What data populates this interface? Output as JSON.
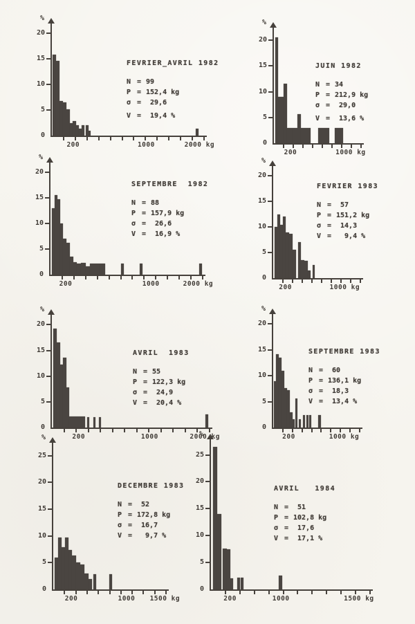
{
  "page": {
    "eq": "=",
    "ink_color": "#46413c",
    "paper_color": "#f6f4ee",
    "bar_color": "#4a4541"
  },
  "chart_data": [
    {
      "type": "bar",
      "title": "FEVRIER_AVRIL 1982",
      "ylabel": "%",
      "xlabel": "kg",
      "stats": [
        {
          "label": "N",
          "value": "99"
        },
        {
          "label": "P",
          "value": "152,4 kg"
        },
        {
          "label": "σ",
          "value": " 29,6"
        },
        {
          "label": "V",
          "value": " 19,4 %"
        }
      ],
      "y_ticks": [
        0,
        5,
        10,
        15,
        20
      ],
      "ylim": [
        0,
        21
      ],
      "x_ticks": [
        {
          "label": "200",
          "f": 0.14
        },
        {
          "label": "1000",
          "f": 0.62
        },
        {
          "label": "2000 kg",
          "f": 0.97
        }
      ],
      "x_minor_ticks": 13,
      "grid": false,
      "legend": "none",
      "bars": [
        [
          1,
          5,
          15.8
        ],
        [
          6,
          5,
          14.6
        ],
        [
          11,
          5,
          6.8
        ],
        [
          16,
          5,
          6.5
        ],
        [
          21,
          5,
          5.1
        ],
        [
          26,
          4,
          2.5
        ],
        [
          30,
          5,
          2.9
        ],
        [
          35,
          4,
          2.1
        ],
        [
          39,
          4,
          1.4
        ],
        [
          43,
          4,
          2.1
        ],
        [
          49,
          4,
          2.0
        ],
        [
          53,
          3,
          1.0
        ],
        [
          208,
          4,
          1.4
        ]
      ]
    },
    {
      "type": "bar",
      "title": "JUIN 1982",
      "ylabel": "%",
      "xlabel": "kg",
      "stats": [
        {
          "label": "N",
          "value": "34"
        },
        {
          "label": "P",
          "value": "212,9 kg"
        },
        {
          "label": "σ",
          "value": " 29,0"
        },
        {
          "label": "V",
          "value": " 13,6 %"
        }
      ],
      "y_ticks": [
        0,
        5,
        10,
        15,
        20
      ],
      "ylim": [
        0,
        21.5
      ],
      "x_ticks": [
        {
          "label": "200",
          "f": 0.19
        },
        {
          "label": "1000 kg",
          "f": 0.88
        }
      ],
      "x_minor_ticks": 9,
      "grid": false,
      "legend": "none",
      "bars": [
        [
          2,
          4,
          20.6
        ],
        [
          6,
          8,
          9.0
        ],
        [
          14,
          5,
          11.5
        ],
        [
          19,
          8,
          3.0
        ],
        [
          27,
          7,
          3.0
        ],
        [
          34,
          5,
          5.6
        ],
        [
          39,
          8,
          3.0
        ],
        [
          47,
          6,
          3.0
        ],
        [
          64,
          16,
          3.0
        ],
        [
          88,
          12,
          3.0
        ]
      ]
    },
    {
      "type": "bar",
      "title": "SEPTEMBRE  1982",
      "ylabel": "%",
      "xlabel": "kg",
      "stats": [
        {
          "label": "N",
          "value": "88"
        },
        {
          "label": "P",
          "value": "157,9 kg"
        },
        {
          "label": "σ",
          "value": " 26,6"
        },
        {
          "label": "V",
          "value": " 16,9 %"
        }
      ],
      "y_ticks": [
        0,
        5,
        10,
        15,
        20
      ],
      "ylim": [
        0,
        21
      ],
      "x_ticks": [
        {
          "label": "200",
          "f": 0.1
        },
        {
          "label": "1000",
          "f": 0.66
        },
        {
          "label": "2000 kg",
          "f": 0.97
        }
      ],
      "x_minor_ticks": 13,
      "grid": false,
      "legend": "none",
      "bars": [
        [
          2,
          4,
          13.0
        ],
        [
          6,
          4,
          15.6
        ],
        [
          10,
          4,
          14.8
        ],
        [
          14,
          4,
          10.0
        ],
        [
          18,
          5,
          7.0
        ],
        [
          23,
          5,
          6.3
        ],
        [
          28,
          5,
          3.5
        ],
        [
          33,
          5,
          2.5
        ],
        [
          38,
          6,
          2.2
        ],
        [
          44,
          7,
          2.3
        ],
        [
          51,
          6,
          1.6
        ],
        [
          57,
          14,
          2.2
        ],
        [
          71,
          8,
          2.2
        ],
        [
          102,
          4,
          2.2
        ],
        [
          129,
          4,
          2.2
        ],
        [
          215,
          4,
          2.2
        ]
      ]
    },
    {
      "type": "bar",
      "title": "FEVRIER 1983",
      "ylabel": "%",
      "xlabel": "kg",
      "stats": [
        {
          "label": "N",
          "value": " 57"
        },
        {
          "label": "P",
          "value": "151,2 kg"
        },
        {
          "label": "σ",
          "value": " 14,3"
        },
        {
          "label": "V",
          "value": "  9,4 %"
        }
      ],
      "y_ticks": [
        0,
        5,
        10,
        15,
        20
      ],
      "ylim": [
        0,
        21
      ],
      "x_ticks": [
        {
          "label": "200",
          "f": 0.14
        },
        {
          "label": "1000 kg",
          "f": 0.82
        }
      ],
      "x_minor_ticks": 9,
      "grid": false,
      "legend": "none",
      "bars": [
        [
          2,
          4,
          10.0
        ],
        [
          6,
          4,
          12.4
        ],
        [
          10,
          4,
          10.5
        ],
        [
          14,
          4,
          12.0
        ],
        [
          18,
          5,
          9.0
        ],
        [
          23,
          5,
          8.7
        ],
        [
          28,
          5,
          5.5
        ],
        [
          36,
          4,
          7.0
        ],
        [
          40,
          5,
          3.5
        ],
        [
          45,
          5,
          3.4
        ],
        [
          50,
          4,
          1.5
        ],
        [
          57,
          3,
          2.6
        ]
      ]
    },
    {
      "type": "bar",
      "title": "AVRIL  1983",
      "ylabel": "%",
      "xlabel": "kg",
      "stats": [
        {
          "label": "N",
          "value": "55"
        },
        {
          "label": "P",
          "value": "122,3 kg"
        },
        {
          "label": "σ",
          "value": " 24,9"
        },
        {
          "label": "V",
          "value": " 20,4 %"
        }
      ],
      "y_ticks": [
        0,
        5,
        10,
        15,
        20
      ],
      "ylim": [
        0,
        21
      ],
      "x_ticks": [
        {
          "label": "200",
          "f": 0.17
        },
        {
          "label": "1000",
          "f": 0.62
        },
        {
          "label": "2000 kg",
          "f": 0.97
        }
      ],
      "x_minor_ticks": 13,
      "grid": false,
      "legend": "none",
      "bars": [
        [
          2,
          5,
          19.2
        ],
        [
          7,
          5,
          16.6
        ],
        [
          12,
          4,
          12.2
        ],
        [
          16,
          5,
          13.6
        ],
        [
          21,
          4,
          7.8
        ],
        [
          25,
          23,
          2.2
        ],
        [
          51,
          3,
          2.0
        ],
        [
          60,
          3,
          2.0
        ],
        [
          68,
          3,
          2.0
        ],
        [
          222,
          4,
          2.5
        ]
      ]
    },
    {
      "type": "bar",
      "title": "SEPTEMBRE 1983",
      "ylabel": "%",
      "xlabel": "kg",
      "stats": [
        {
          "label": "N",
          "value": " 60"
        },
        {
          "label": "P",
          "value": "136,1 kg"
        },
        {
          "label": "σ",
          "value": " 18,3"
        },
        {
          "label": "V",
          "value": " 13,4 %"
        }
      ],
      "y_ticks": [
        0,
        5,
        10,
        15,
        20
      ],
      "ylim": [
        0,
        21
      ],
      "x_ticks": [
        {
          "label": "200",
          "f": 0.18
        },
        {
          "label": "1000 kg",
          "f": 0.82
        }
      ],
      "x_minor_ticks": 9,
      "grid": false,
      "legend": "none",
      "bars": [
        [
          1,
          3,
          9.0
        ],
        [
          4,
          4,
          14.2
        ],
        [
          8,
          4,
          13.5
        ],
        [
          12,
          4,
          11.0
        ],
        [
          16,
          4,
          7.6
        ],
        [
          20,
          4,
          7.2
        ],
        [
          24,
          4,
          3.0
        ],
        [
          28,
          3,
          1.6
        ],
        [
          32,
          3,
          5.6
        ],
        [
          37,
          3,
          1.6
        ],
        [
          43,
          3,
          2.4
        ],
        [
          48,
          3,
          2.4
        ],
        [
          52,
          3,
          2.4
        ],
        [
          65,
          4,
          2.4
        ]
      ]
    },
    {
      "type": "bar",
      "title": "DECEMBRE 1983",
      "ylabel": "%",
      "xlabel": "kg",
      "stats": [
        {
          "label": "N",
          "value": " 52"
        },
        {
          "label": "P",
          "value": "172,8 kg"
        },
        {
          "label": "σ",
          "value": " 16,7"
        },
        {
          "label": "V",
          "value": "  9,7 %"
        }
      ],
      "y_ticks": [
        0,
        5,
        10,
        15,
        20,
        25
      ],
      "ylim": [
        0,
        26.5
      ],
      "x_ticks": [
        {
          "label": "200",
          "f": 0.16
        },
        {
          "label": "1000",
          "f": 0.65
        },
        {
          "label": "1500 kg",
          "f": 0.99
        }
      ],
      "x_minor_ticks": 10,
      "grid": false,
      "legend": "none",
      "bars": [
        [
          2,
          5,
          6.0
        ],
        [
          7,
          5,
          9.7
        ],
        [
          12,
          5,
          7.9
        ],
        [
          17,
          5,
          9.7
        ],
        [
          22,
          5,
          7.4
        ],
        [
          27,
          6,
          6.3
        ],
        [
          33,
          6,
          5.0
        ],
        [
          39,
          6,
          4.6
        ],
        [
          45,
          6,
          3.0
        ],
        [
          51,
          5,
          2.0
        ],
        [
          58,
          4,
          2.9
        ],
        [
          81,
          4,
          2.9
        ]
      ]
    },
    {
      "type": "bar",
      "title": "AVRIL   1984",
      "ylabel": "%",
      "xlabel": "kg",
      "stats": [
        {
          "label": "N",
          "value": " 51"
        },
        {
          "label": "P",
          "value": "102,8 kg"
        },
        {
          "label": "σ",
          "value": " 17,6"
        },
        {
          "label": "V",
          "value": " 17,1 %"
        }
      ],
      "y_ticks": [
        0,
        5,
        10,
        15,
        20,
        25
      ],
      "ylim": [
        0,
        27
      ],
      "x_ticks": [
        {
          "label": "200",
          "f": 0.12
        },
        {
          "label": "1000",
          "f": 0.44
        },
        {
          "label": "1500 kg",
          "f": 0.93
        }
      ],
      "x_minor_ticks": 11,
      "grid": false,
      "legend": "none",
      "bars": [
        [
          3,
          6,
          26.5
        ],
        [
          9,
          6,
          14.0
        ],
        [
          17,
          6,
          7.6
        ],
        [
          23,
          5,
          7.4
        ],
        [
          28,
          4,
          2.0
        ],
        [
          38,
          4,
          2.2
        ],
        [
          43,
          4,
          2.2
        ],
        [
          98,
          5,
          2.6
        ]
      ]
    }
  ]
}
